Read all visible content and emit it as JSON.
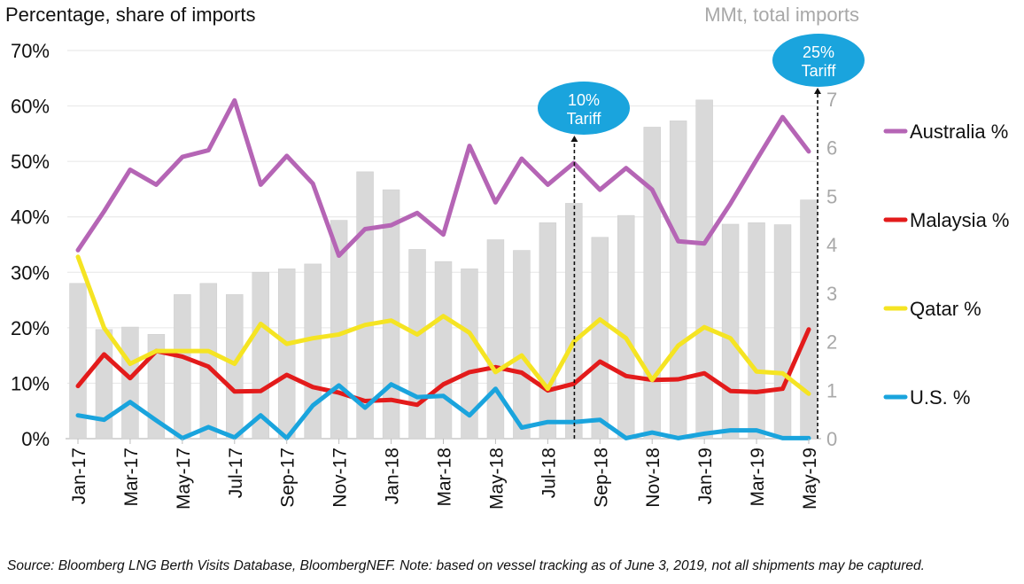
{
  "header": {
    "left_title": "Percentage, share of imports",
    "right_title": "MMt, total imports"
  },
  "source_note": "Source: Bloomberg LNG Berth Visits Database, BloombergNEF. Note: based on vessel tracking as of June 3, 2019, not all shipments may be captured.",
  "chart_data": {
    "type": "bar+line",
    "x": [
      "Jan-17",
      "Feb-17",
      "Mar-17",
      "Apr-17",
      "May-17",
      "Jun-17",
      "Jul-17",
      "Aug-17",
      "Sep-17",
      "Oct-17",
      "Nov-17",
      "Dec-17",
      "Jan-18",
      "Feb-18",
      "Mar-18",
      "Apr-18",
      "May-18",
      "Jun-18",
      "Jul-18",
      "Aug-18",
      "Sep-18",
      "Oct-18",
      "Nov-18",
      "Dec-18",
      "Jan-19",
      "Feb-19",
      "Mar-19",
      "Apr-19",
      "May-19"
    ],
    "x_tick_labels": [
      "Jan-17",
      "Mar-17",
      "May-17",
      "Jul-17",
      "Sep-17",
      "Nov-17",
      "Jan-18",
      "Mar-18",
      "May-18",
      "Jul-18",
      "Sep-18",
      "Nov-18",
      "Jan-19",
      "Mar-19",
      "May-19"
    ],
    "y_left": {
      "label": "Percentage, share of imports",
      "min": 0,
      "max": 70,
      "ticks": [
        "0%",
        "10%",
        "20%",
        "30%",
        "40%",
        "50%",
        "60%",
        "70%"
      ]
    },
    "y_right": {
      "label": "MMt, total imports",
      "min": 0,
      "max": 8,
      "ticks": [
        "0",
        "1",
        "2",
        "3",
        "4",
        "5",
        "6",
        "7"
      ]
    },
    "grid": true,
    "legend_placement": "right",
    "bars": {
      "axis": "right",
      "color": "#d9d9d9",
      "values": [
        3.2,
        2.25,
        2.3,
        2.15,
        2.97,
        3.2,
        2.97,
        3.43,
        3.5,
        3.6,
        4.5,
        5.5,
        5.13,
        3.9,
        3.65,
        3.5,
        4.1,
        3.88,
        4.45,
        4.85,
        4.15,
        4.6,
        6.42,
        6.55,
        6.98,
        4.42,
        4.45,
        4.41,
        4.92
      ]
    },
    "series": [
      {
        "name": "Australia %",
        "color": "#b565b5",
        "values": [
          34,
          41,
          48.5,
          45.8,
          50.8,
          52,
          61,
          45.8,
          51,
          46,
          33,
          37.8,
          38.5,
          40.7,
          36.8,
          52.8,
          42.6,
          50.5,
          45.8,
          49.7,
          44.9,
          48.8,
          44.9,
          35.6,
          35.2,
          42.4,
          50.3,
          58,
          51.8
        ]
      },
      {
        "name": "Malaysia %",
        "color": "#e31b1b",
        "values": [
          9.5,
          15.2,
          10.9,
          15.8,
          14.8,
          13,
          8.5,
          8.6,
          11.5,
          9.3,
          8.3,
          6.8,
          7,
          6.1,
          9.8,
          12,
          12.9,
          11.9,
          8.7,
          9.9,
          13.9,
          11.3,
          10.6,
          10.7,
          11.8,
          8.6,
          8.4,
          9,
          19.7
        ]
      },
      {
        "name": "Qatar %",
        "color": "#f5e423",
        "values": [
          32.8,
          20,
          13.5,
          15.8,
          15.8,
          15.8,
          13.5,
          20.7,
          17.1,
          18.1,
          18.8,
          20.5,
          21.3,
          18.8,
          22.1,
          19.1,
          12,
          15,
          9,
          17.5,
          21.5,
          18.1,
          10.6,
          16.8,
          20.1,
          18.1,
          12.1,
          11.8,
          8.1
        ]
      },
      {
        "name": "U.S. %",
        "color": "#1aa4dd",
        "values": [
          4.2,
          3.4,
          6.6,
          3.3,
          0.1,
          2.1,
          0.2,
          4.2,
          0.1,
          6,
          9.6,
          5.6,
          9.8,
          7.5,
          7.7,
          4.2,
          9,
          2,
          3,
          3,
          3.4,
          0.1,
          1.1,
          0.1,
          0.9,
          1.5,
          1.5,
          0.1,
          0.1
        ]
      }
    ],
    "annotations": [
      {
        "label_line1": "10%",
        "label_line2": "Tariff",
        "x": "Aug-18",
        "color": "#1aa4dd"
      },
      {
        "label_line1": "25%",
        "label_line2": "Tariff",
        "x": "May-19",
        "color": "#1aa4dd"
      }
    ]
  }
}
